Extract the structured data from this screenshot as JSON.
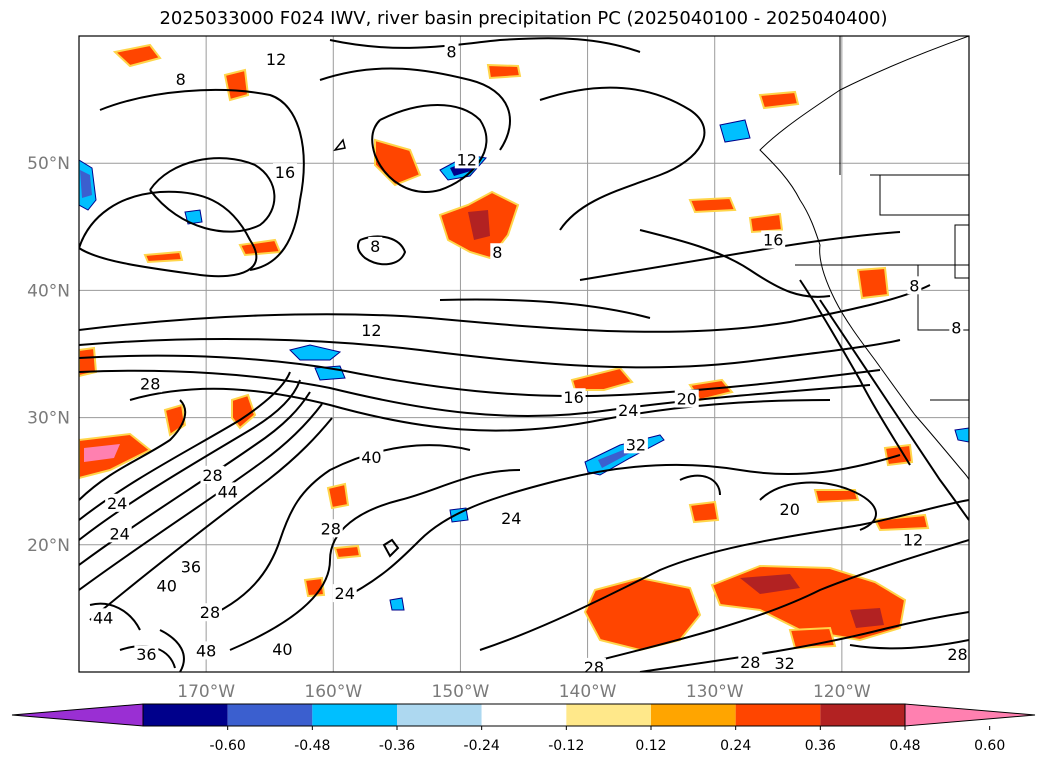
{
  "title": "2025033000 F024 IWV, river basin precipitation PC (2025040100 - 2025040400)",
  "map": {
    "lon_range": [
      -180,
      -110
    ],
    "lat_range": [
      10,
      60
    ],
    "lon_ticks": [
      {
        "value": -170,
        "label": "170°W"
      },
      {
        "value": -160,
        "label": "160°W"
      },
      {
        "value": -150,
        "label": "150°W"
      },
      {
        "value": -140,
        "label": "140°W"
      },
      {
        "value": -130,
        "label": "130°W"
      },
      {
        "value": -120,
        "label": "120°W"
      }
    ],
    "lat_ticks": [
      {
        "value": 20,
        "label": "20°N"
      },
      {
        "value": 30,
        "label": "30°N"
      },
      {
        "value": 40,
        "label": "40°N"
      },
      {
        "value": 50,
        "label": "50°N"
      }
    ],
    "grid": true,
    "contour_color": "#000000"
  },
  "contour_labels": [
    {
      "text": "8",
      "lon": -172,
      "lat": 56.6
    },
    {
      "text": "12",
      "lon": -164.5,
      "lat": 58.2
    },
    {
      "text": "16",
      "lon": -163.8,
      "lat": 49.3
    },
    {
      "text": "8",
      "lon": -150.7,
      "lat": 58.8
    },
    {
      "text": "12",
      "lon": -149.5,
      "lat": 50.3
    },
    {
      "text": "8",
      "lon": -156.7,
      "lat": 43.5
    },
    {
      "text": "8",
      "lon": -147.1,
      "lat": 43.0
    },
    {
      "text": "16",
      "lon": -125.4,
      "lat": 44.0
    },
    {
      "text": "8",
      "lon": -114.3,
      "lat": 40.4
    },
    {
      "text": "8",
      "lon": -111.0,
      "lat": 37.1
    },
    {
      "text": "12",
      "lon": -157.0,
      "lat": 36.9
    },
    {
      "text": "28",
      "lon": -174.4,
      "lat": 32.7
    },
    {
      "text": "16",
      "lon": -141.1,
      "lat": 31.6
    },
    {
      "text": "24",
      "lon": -136.8,
      "lat": 30.6
    },
    {
      "text": "20",
      "lon": -132.2,
      "lat": 31.5
    },
    {
      "text": "32",
      "lon": -136.2,
      "lat": 27.9
    },
    {
      "text": "40",
      "lon": -157.0,
      "lat": 26.9
    },
    {
      "text": "28",
      "lon": -169.5,
      "lat": 25.5
    },
    {
      "text": "44",
      "lon": -168.3,
      "lat": 24.2
    },
    {
      "text": "24",
      "lon": -177.0,
      "lat": 23.3
    },
    {
      "text": "24",
      "lon": -176.8,
      "lat": 20.9
    },
    {
      "text": "28",
      "lon": -160.2,
      "lat": 21.3
    },
    {
      "text": "24",
      "lon": -146.0,
      "lat": 22.1
    },
    {
      "text": "20",
      "lon": -124.1,
      "lat": 22.8
    },
    {
      "text": "12",
      "lon": -114.4,
      "lat": 20.4
    },
    {
      "text": "40",
      "lon": -173.1,
      "lat": 16.8
    },
    {
      "text": "36",
      "lon": -171.2,
      "lat": 18.3
    },
    {
      "text": "28",
      "lon": -169.7,
      "lat": 14.7
    },
    {
      "text": "24",
      "lon": -159.1,
      "lat": 16.2
    },
    {
      "text": "44",
      "lon": -178.1,
      "lat": 14.3
    },
    {
      "text": "36",
      "lon": -174.7,
      "lat": 11.4
    },
    {
      "text": "48",
      "lon": -170.0,
      "lat": 11.7
    },
    {
      "text": "40",
      "lon": -164.0,
      "lat": 11.8
    },
    {
      "text": "28",
      "lon": -139.5,
      "lat": 10.4
    },
    {
      "text": "28",
      "lon": -127.2,
      "lat": 10.8
    },
    {
      "text": "32",
      "lon": -124.5,
      "lat": 10.7
    },
    {
      "text": "28",
      "lon": -110.9,
      "lat": 11.4
    }
  ],
  "colorbar": {
    "ticks": [
      "-0.60",
      "-0.48",
      "-0.36",
      "-0.24",
      "-0.12",
      "0.12",
      "0.24",
      "0.36",
      "0.48",
      "0.60"
    ],
    "colors": [
      "#9a2fd3",
      "#00008b",
      "#3b5fcf",
      "#00bfff",
      "#add8f0",
      "#ffffff",
      "#ffe88a",
      "#ffa500",
      "#ff4500",
      "#b22222",
      "#ff80b0"
    ]
  }
}
